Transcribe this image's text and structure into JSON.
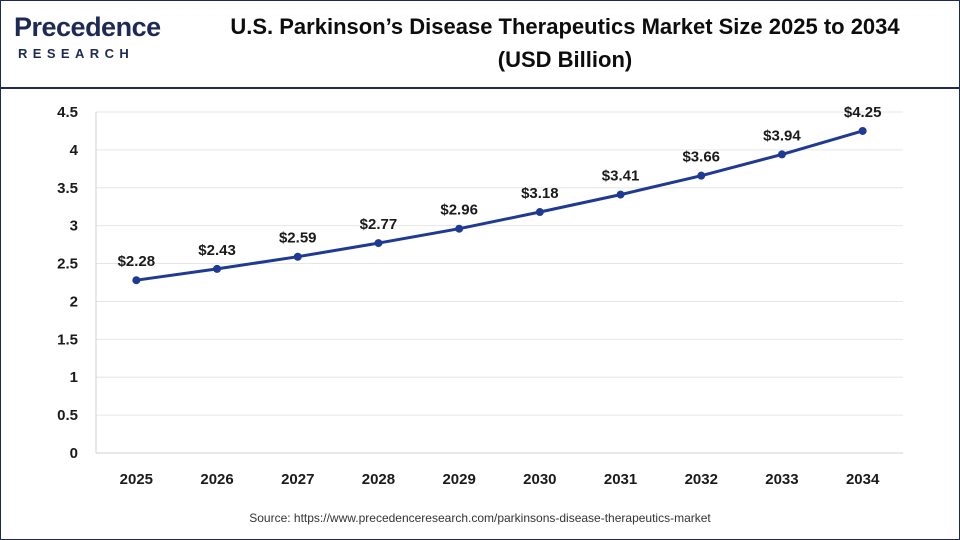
{
  "brand": {
    "name_top": "Precedence",
    "name_bottom": "RESEARCH"
  },
  "header": {
    "title_line1": "U.S. Parkinson’s Disease Therapeutics Market Size 2025 to 2034",
    "title_line2": "(USD Billion)"
  },
  "source": "Source: https://www.precedenceresearch.com/parkinsons-disease-therapeutics-market",
  "chart_data": {
    "type": "line",
    "title": "U.S. Parkinson’s Disease Therapeutics Market Size 2025 to 2034 (USD Billion)",
    "xlabel": "",
    "ylabel": "",
    "categories": [
      "2025",
      "2026",
      "2027",
      "2028",
      "2029",
      "2030",
      "2031",
      "2032",
      "2033",
      "2034"
    ],
    "series": [
      {
        "values": [
          2.28,
          2.43,
          2.59,
          2.77,
          2.96,
          3.18,
          3.41,
          3.66,
          3.94,
          4.25
        ],
        "labels": [
          "$2.28",
          "$2.43",
          "$2.59",
          "$2.77",
          "$2.96",
          "$3.18",
          "$3.41",
          "$3.66",
          "$3.94",
          "$4.25"
        ],
        "color": "#1f3a93"
      }
    ],
    "ylim": [
      0,
      4.5
    ],
    "yticks": [
      "0",
      "0.5",
      "1",
      "1.5",
      "2",
      "2.5",
      "3",
      "3.5",
      "4",
      "4.5"
    ],
    "grid": true,
    "legend": "none"
  }
}
